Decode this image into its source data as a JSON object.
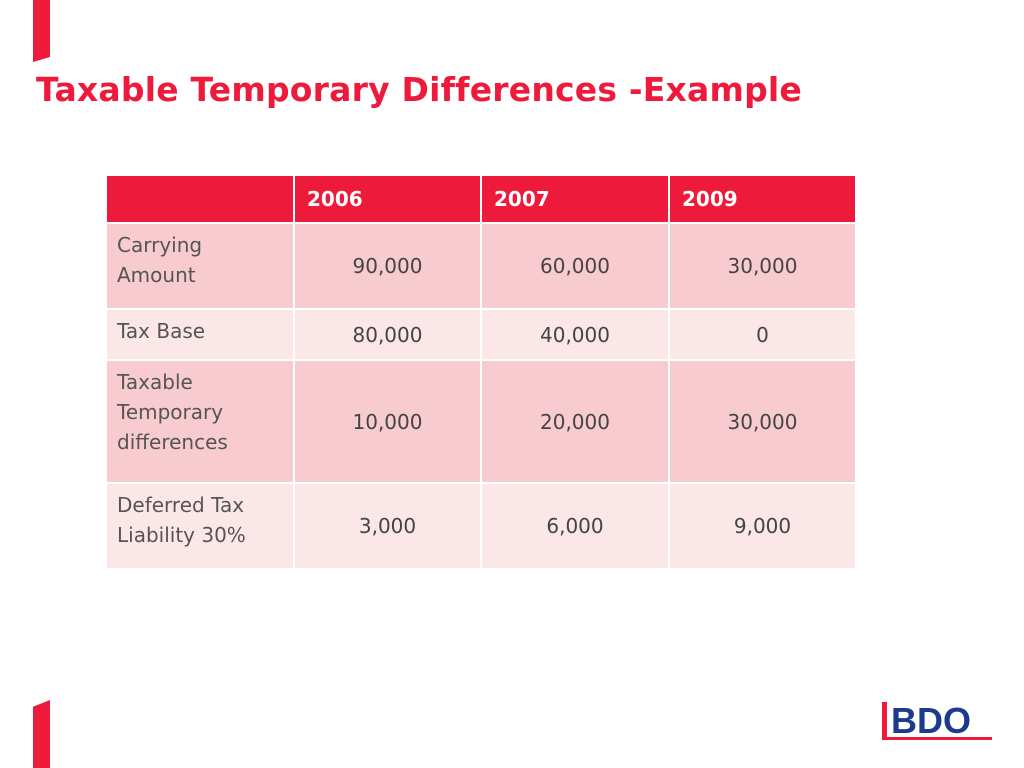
{
  "slide": {
    "title": "Taxable Temporary Differences -Example"
  },
  "table": {
    "headers": [
      "",
      "2006",
      "2007",
      "2009"
    ],
    "rows": [
      {
        "label": "Carrying Amount",
        "values": [
          "90,000",
          "60,000",
          "30,000"
        ]
      },
      {
        "label": "Tax Base",
        "values": [
          "80,000",
          "40,000",
          "0"
        ]
      },
      {
        "label": "Taxable Temporary differences",
        "values": [
          "10,000",
          "20,000",
          "30,000"
        ]
      },
      {
        "label": "Deferred Tax Liability 30%",
        "values": [
          "3,000",
          "6,000",
          "9,000"
        ]
      }
    ]
  },
  "logo": {
    "text": "BDO",
    "colors": {
      "bar": "#ed1a3b",
      "text": "#1b3c8c"
    }
  },
  "colors": {
    "accent": "#ed1a3b",
    "row_dark": "#f7cbcf",
    "row_light": "#fbe6e8"
  }
}
